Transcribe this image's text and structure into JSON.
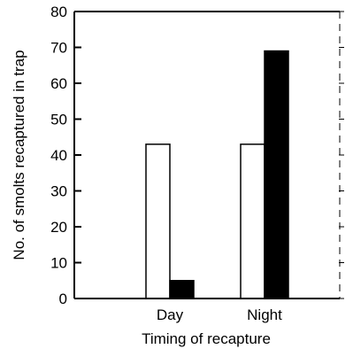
{
  "chart_data": {
    "type": "bar",
    "xlabel": "Timing of recapture",
    "ylabel": "No. of smolts recaptured in trap",
    "categories": [
      "Day",
      "Night"
    ],
    "series": [
      {
        "values": [
          43,
          43
        ],
        "fill": "#ffffff"
      },
      {
        "values": [
          5,
          69
        ],
        "fill": "#000000"
      }
    ],
    "ylim": [
      0,
      80
    ],
    "yticks": [
      0,
      10,
      20,
      30,
      40,
      50,
      60,
      70,
      80
    ],
    "grid": false
  }
}
